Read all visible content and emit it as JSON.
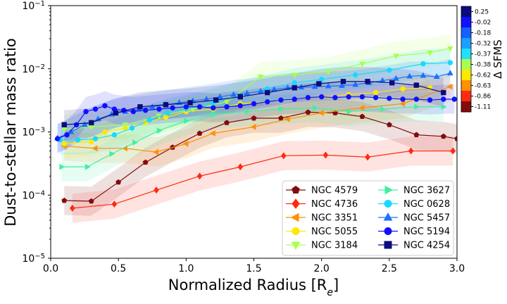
{
  "chart_data": {
    "type": "line",
    "xlabel": "Normalized Radius [R",
    "xlabel_sub": "e",
    "xlabel_close": "]",
    "ylabel": "Dust-to-stellar mass ratio",
    "xlim": [
      0.0,
      3.0
    ],
    "ylim_log10": [
      -5,
      -1
    ],
    "x_ticks": [
      0.0,
      0.5,
      1.0,
      1.5,
      2.0,
      2.5,
      3.0
    ],
    "x_tick_labels": [
      "0.0",
      "0.5",
      "1.0",
      "1.5",
      "2.0",
      "2.5",
      "3.0"
    ],
    "y_ticks_log10": [
      -5,
      -4,
      -3,
      -2,
      -1
    ],
    "y_tick_labels": [
      {
        "base": "10",
        "exp": "−5"
      },
      {
        "base": "10",
        "exp": "−4"
      },
      {
        "base": "10",
        "exp": "−3"
      },
      {
        "base": "10",
        "exp": "−2"
      },
      {
        "base": "10",
        "exp": "−1"
      }
    ],
    "colorbar": {
      "label": "Δ SFMS",
      "ticks": [
        "0.25",
        "-0.02",
        "-0.18",
        "-0.32",
        "-0.37",
        "-0.38",
        "-0.62",
        "-0.63",
        "-0.86",
        "-1.11"
      ],
      "colors": [
        "#0b0b80",
        "#1010ff",
        "#1560ff",
        "#1aa0ff",
        "#22e0ff",
        "#a8ff50",
        "#ffe800",
        "#ff9000",
        "#ff2a10",
        "#820c0c"
      ]
    },
    "series": [
      {
        "name": "NGC 4579",
        "color": "#820c0c",
        "marker": "pentagon",
        "x": [
          0.1,
          0.3,
          0.5,
          0.7,
          0.9,
          1.1,
          1.3,
          1.5,
          1.7,
          1.9,
          2.1,
          2.3,
          2.5,
          2.7,
          2.9,
          3.0
        ],
        "y": [
          8.2e-05,
          8e-05,
          0.00016,
          0.00033,
          0.00057,
          0.00095,
          0.0014,
          0.00165,
          0.00165,
          0.00205,
          0.002,
          0.00175,
          0.0013,
          0.0009,
          0.00085,
          0.00078
        ]
      },
      {
        "name": "NGC 4736",
        "color": "#ff2a10",
        "marker": "diamond",
        "x": [
          0.16,
          0.47,
          0.78,
          1.1,
          1.4,
          1.72,
          2.03,
          2.34,
          2.66,
          2.97
        ],
        "y": [
          6.2e-05,
          7.2e-05,
          0.00012,
          0.0002,
          0.00028,
          0.00042,
          0.00043,
          0.0004,
          0.0005,
          0.0005
        ]
      },
      {
        "name": "NGC 3351",
        "color": "#ff9000",
        "marker": "triangle-left",
        "x": [
          0.1,
          0.33,
          0.55,
          0.78,
          1.0,
          1.2,
          1.5,
          1.75,
          2.0,
          2.3,
          2.6,
          2.95
        ],
        "y": [
          0.0006,
          0.00055,
          0.00055,
          0.00048,
          0.00065,
          0.00095,
          0.0012,
          0.0016,
          0.002,
          0.0024,
          0.0028,
          0.0052
        ]
      },
      {
        "name": "NGC 5055",
        "color": "#ffe800",
        "marker": "circle",
        "x": [
          0.1,
          0.3,
          0.4,
          0.55,
          0.7,
          0.85,
          1.0,
          1.2,
          1.4,
          1.6,
          1.8,
          2.0,
          2.2,
          2.4,
          2.6,
          2.8
        ],
        "y": [
          0.00065,
          0.0007,
          0.001,
          0.00115,
          0.0014,
          0.0017,
          0.0021,
          0.0023,
          0.0028,
          0.003,
          0.0033,
          0.0036,
          0.0039,
          0.0042,
          0.0048,
          0.005
        ]
      },
      {
        "name": "NGC 3184",
        "color": "#a8ff50",
        "marker": "triangle-down",
        "x": [
          0.1,
          0.3,
          0.55,
          0.8,
          1.05,
          1.3,
          1.55,
          1.8,
          2.05,
          2.3,
          2.55,
          2.8,
          2.95
        ],
        "y": [
          0.0011,
          0.0012,
          0.0013,
          0.0018,
          0.0023,
          0.003,
          0.0075,
          0.008,
          0.009,
          0.012,
          0.016,
          0.018,
          0.021
        ]
      },
      {
        "name": "NGC 3627",
        "color": "#40f0a0",
        "marker": "triangle-right",
        "x": [
          0.08,
          0.27,
          0.45,
          0.62,
          0.8,
          1.0,
          1.2,
          1.45,
          1.7,
          1.95,
          2.2,
          2.45,
          2.7,
          2.9
        ],
        "y": [
          0.00028,
          0.00028,
          0.00045,
          0.00068,
          0.00105,
          0.0015,
          0.0019,
          0.0021,
          0.0023,
          0.0024,
          0.0021,
          0.0023,
          0.0025,
          0.0025
        ]
      },
      {
        "name": "NGC 0628",
        "color": "#1ad8ff",
        "marker": "circle",
        "x": [
          0.07,
          0.2,
          0.33,
          0.47,
          0.6,
          0.73,
          0.86,
          1.0,
          1.2,
          1.4,
          1.6,
          1.8,
          2.0,
          2.25,
          2.5,
          2.75,
          2.95
        ],
        "y": [
          0.00075,
          0.00075,
          0.00078,
          0.0009,
          0.00115,
          0.00155,
          0.002,
          0.0023,
          0.0029,
          0.0038,
          0.0048,
          0.006,
          0.0068,
          0.008,
          0.0095,
          0.012,
          0.0125
        ]
      },
      {
        "name": "NGC 5457",
        "color": "#1a70ff",
        "marker": "triangle-up",
        "x": [
          0.05,
          0.15,
          0.25,
          0.35,
          0.45,
          0.55,
          0.65,
          0.75,
          0.85,
          0.95,
          1.05,
          1.15,
          1.25,
          1.35,
          1.45,
          1.55,
          1.65,
          1.75,
          1.85,
          1.95,
          2.05,
          2.15,
          2.25,
          2.35,
          2.45,
          2.55,
          2.65,
          2.75,
          2.85,
          2.95
        ],
        "y": [
          0.0008,
          0.001,
          0.0013,
          0.0016,
          0.0019,
          0.0021,
          0.0023,
          0.0025,
          0.0027,
          0.0029,
          0.0031,
          0.0033,
          0.0036,
          0.0039,
          0.0041,
          0.0044,
          0.0047,
          0.005,
          0.0051,
          0.0052,
          0.0053,
          0.0054,
          0.0056,
          0.006,
          0.0065,
          0.007,
          0.0076,
          0.0078,
          0.0075,
          0.0085
        ]
      },
      {
        "name": "NGC 5194",
        "color": "#1010ff",
        "marker": "circle",
        "x": [
          0.05,
          0.12,
          0.19,
          0.26,
          0.33,
          0.4,
          0.47,
          0.54,
          0.61,
          0.7,
          0.8,
          0.9,
          1.0,
          1.1,
          1.2,
          1.3,
          1.4,
          1.5,
          1.6,
          1.7,
          1.8,
          1.9,
          2.0,
          2.1,
          2.2,
          2.3,
          2.4,
          2.5,
          2.6,
          2.7,
          2.8,
          2.9,
          2.98
        ],
        "y": [
          0.00078,
          0.0009,
          0.0013,
          0.0021,
          0.0023,
          0.0026,
          0.0023,
          0.0022,
          0.0021,
          0.0022,
          0.0023,
          0.0024,
          0.0025,
          0.0025,
          0.0024,
          0.0025,
          0.0026,
          0.0028,
          0.003,
          0.0032,
          0.0033,
          0.0035,
          0.0036,
          0.0035,
          0.0036,
          0.0036,
          0.0035,
          0.0034,
          0.0033,
          0.0033,
          0.0032,
          0.0033,
          0.0033
        ]
      },
      {
        "name": "NGC 4254",
        "color": "#0b0b80",
        "marker": "square",
        "x": [
          0.1,
          0.3,
          0.48,
          0.66,
          0.85,
          1.03,
          1.22,
          1.4,
          1.6,
          1.8,
          1.98,
          2.16,
          2.34,
          2.52,
          2.7,
          2.9
        ],
        "y": [
          0.0013,
          0.0014,
          0.002,
          0.0025,
          0.0027,
          0.0029,
          0.0032,
          0.0036,
          0.0042,
          0.005,
          0.0058,
          0.0063,
          0.0063,
          0.006,
          0.0055,
          0.0042
        ]
      }
    ]
  }
}
